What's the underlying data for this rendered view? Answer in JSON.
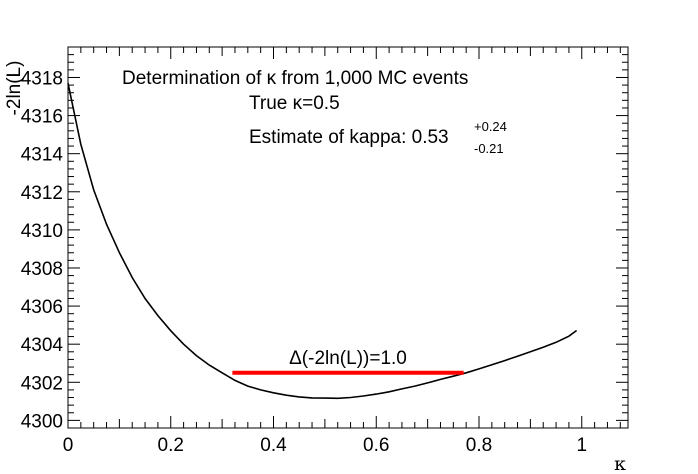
{
  "chart_data": {
    "type": "line",
    "title": "",
    "xlabel": "κ",
    "ylabel": "-2ln(L)",
    "xlim": [
      0,
      1.09
    ],
    "ylim": [
      4299.6,
      4319.6
    ],
    "x_ticks": [
      0,
      0.2,
      0.4,
      0.6,
      0.8,
      1
    ],
    "x_tick_labels": [
      "0",
      "0.2",
      "0.4",
      "0.6",
      "0.8",
      "1"
    ],
    "y_ticks": [
      4300,
      4302,
      4304,
      4306,
      4308,
      4310,
      4312,
      4314,
      4316,
      4318
    ],
    "y_tick_labels": [
      "4300",
      "4302",
      "4304",
      "4306",
      "4308",
      "4310",
      "4312",
      "4314",
      "4316",
      "4318"
    ],
    "grid": false,
    "series": [
      {
        "color": "#000000",
        "x": [
          0.0,
          0.025,
          0.05,
          0.075,
          0.1,
          0.125,
          0.15,
          0.175,
          0.2,
          0.225,
          0.25,
          0.275,
          0.3,
          0.325,
          0.35,
          0.375,
          0.4,
          0.425,
          0.45,
          0.475,
          0.5,
          0.525,
          0.55,
          0.575,
          0.6,
          0.625,
          0.65,
          0.675,
          0.7,
          0.725,
          0.75,
          0.775,
          0.8,
          0.825,
          0.85,
          0.875,
          0.9,
          0.925,
          0.95,
          0.975,
          0.99
        ],
        "y": [
          4317.7,
          4314.5,
          4312.1,
          4310.3,
          4308.8,
          4307.5,
          4306.4,
          4305.5,
          4304.7,
          4304.0,
          4303.4,
          4302.9,
          4302.5,
          4302.1,
          4301.8,
          4301.6,
          4301.45,
          4301.32,
          4301.23,
          4301.18,
          4301.17,
          4301.16,
          4301.2,
          4301.28,
          4301.38,
          4301.5,
          4301.65,
          4301.8,
          4301.97,
          4302.15,
          4302.32,
          4302.5,
          4302.7,
          4302.92,
          4303.14,
          4303.37,
          4303.6,
          4303.84,
          4304.1,
          4304.42,
          4304.72
        ]
      }
    ],
    "interval": {
      "color": "#ff0000",
      "x": [
        0.32,
        0.77
      ],
      "y": 4302.5,
      "label": "Δ(-2ln(L))=1.0"
    },
    "annotations": {
      "line1": "Determination of κ from 1,000 MC events",
      "line2": "True κ=0.5",
      "line3_main": "Estimate of kappa: 0.53",
      "line3_sup": "+0.24",
      "line3_sub": "-0.21"
    }
  }
}
